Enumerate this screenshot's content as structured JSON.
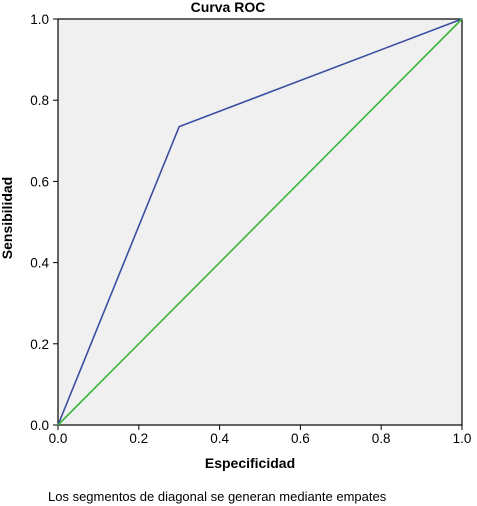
{
  "chart_data": {
    "type": "line",
    "title": "Curva ROC",
    "xlabel": "Especificidad",
    "ylabel": "Sensibilidad",
    "footnote": "Los segmentos de diagonal se generan mediante empates",
    "xlim": [
      0,
      1
    ],
    "ylim": [
      0,
      1
    ],
    "x_ticks": [
      "0.0",
      "0.2",
      "0.4",
      "0.6",
      "0.8",
      "1.0"
    ],
    "y_ticks": [
      "0.0",
      "0.2",
      "0.4",
      "0.6",
      "0.8",
      "1.0"
    ],
    "grid": false,
    "legend": "none",
    "plot_background": "#f0f0f0",
    "series": [
      {
        "color": "#3c4ea0",
        "points": [
          [
            0,
            0
          ],
          [
            0.3,
            0.735
          ],
          [
            1,
            1
          ]
        ]
      },
      {
        "color": "#3cb43c",
        "points": [
          [
            0,
            0
          ],
          [
            1,
            1
          ]
        ]
      }
    ]
  }
}
